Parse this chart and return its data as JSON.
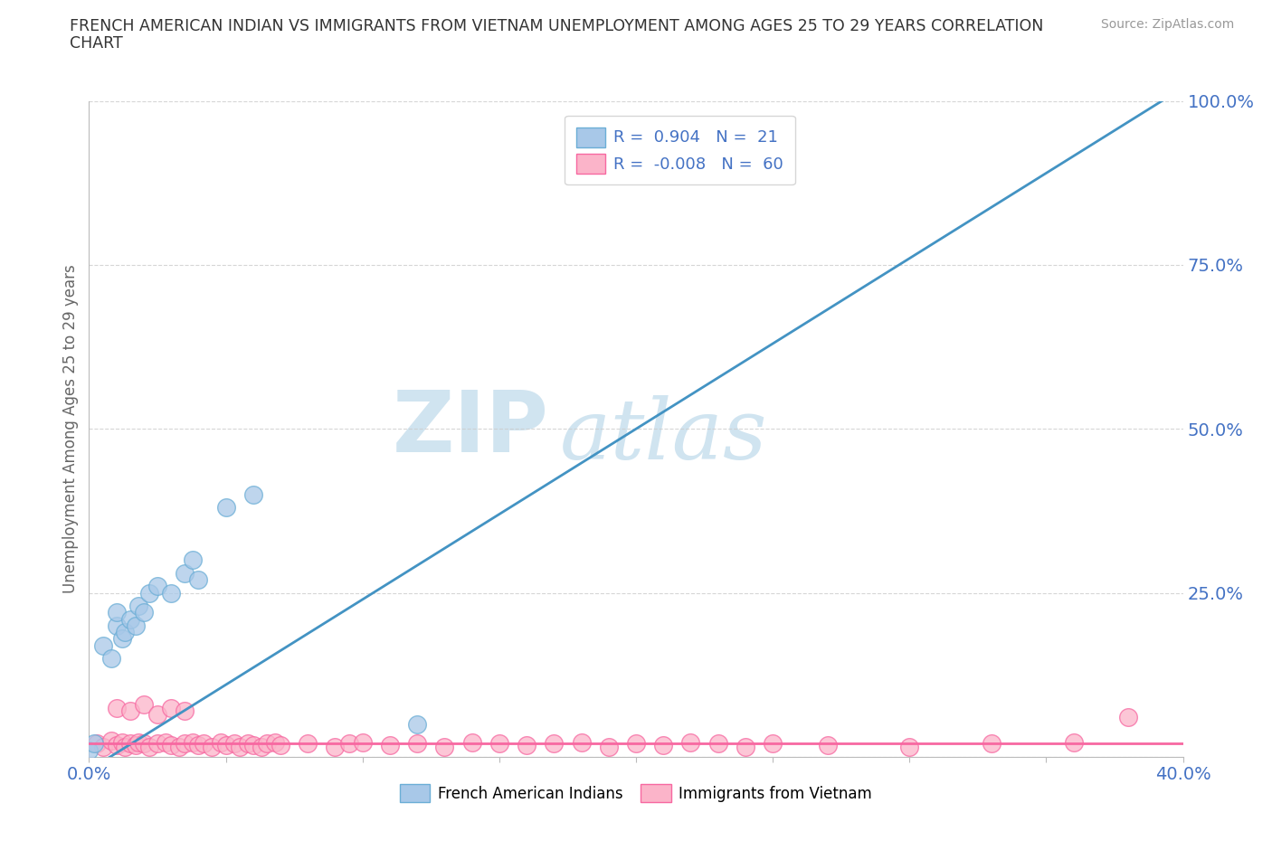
{
  "title_line1": "FRENCH AMERICAN INDIAN VS IMMIGRANTS FROM VIETNAM UNEMPLOYMENT AMONG AGES 25 TO 29 YEARS CORRELATION",
  "title_line2": "CHART",
  "source_text": "Source: ZipAtlas.com",
  "ylabel": "Unemployment Among Ages 25 to 29 years",
  "xlim": [
    0.0,
    0.4
  ],
  "ylim": [
    0.0,
    1.0
  ],
  "xticks": [
    0.0,
    0.05,
    0.1,
    0.15,
    0.2,
    0.25,
    0.3,
    0.35,
    0.4
  ],
  "xticklabels": [
    "0.0%",
    "",
    "",
    "",
    "",
    "",
    "",
    "",
    "40.0%"
  ],
  "yticks": [
    0.0,
    0.25,
    0.5,
    0.75,
    1.0
  ],
  "yticklabels": [
    "",
    "25.0%",
    "50.0%",
    "75.0%",
    "100.0%"
  ],
  "blue_color": "#a8c8e8",
  "blue_edge": "#6baed6",
  "pink_color": "#fbb4c9",
  "pink_edge": "#f768a1",
  "trend_blue": "#4393c3",
  "trend_pink": "#f768a1",
  "watermark_zip": "ZIP",
  "watermark_atlas": "atlas",
  "watermark_color": "#d0e4f0",
  "legend_blue_r": "0.904",
  "legend_blue_n": "21",
  "legend_pink_r": "-0.008",
  "legend_pink_n": "60",
  "tick_color": "#4472c4",
  "label_color": "#666666",
  "blue_scatter_x": [
    0.005,
    0.008,
    0.01,
    0.01,
    0.012,
    0.013,
    0.015,
    0.017,
    0.018,
    0.02,
    0.022,
    0.025,
    0.03,
    0.035,
    0.038,
    0.04,
    0.05,
    0.06,
    0.0,
    0.002,
    0.12
  ],
  "blue_scatter_y": [
    0.17,
    0.15,
    0.2,
    0.22,
    0.18,
    0.19,
    0.21,
    0.2,
    0.23,
    0.22,
    0.25,
    0.26,
    0.25,
    0.28,
    0.3,
    0.27,
    0.38,
    0.4,
    0.01,
    0.02,
    0.05
  ],
  "pink_scatter_x": [
    0.003,
    0.005,
    0.008,
    0.01,
    0.012,
    0.013,
    0.015,
    0.017,
    0.018,
    0.02,
    0.022,
    0.025,
    0.028,
    0.03,
    0.033,
    0.035,
    0.038,
    0.04,
    0.042,
    0.045,
    0.048,
    0.05,
    0.053,
    0.055,
    0.058,
    0.06,
    0.063,
    0.065,
    0.068,
    0.07,
    0.08,
    0.09,
    0.095,
    0.1,
    0.11,
    0.12,
    0.13,
    0.14,
    0.15,
    0.16,
    0.17,
    0.18,
    0.19,
    0.2,
    0.21,
    0.22,
    0.23,
    0.24,
    0.25,
    0.27,
    0.3,
    0.33,
    0.36,
    0.01,
    0.015,
    0.02,
    0.025,
    0.03,
    0.035,
    0.38
  ],
  "pink_scatter_y": [
    0.02,
    0.015,
    0.025,
    0.018,
    0.022,
    0.015,
    0.02,
    0.018,
    0.022,
    0.02,
    0.015,
    0.02,
    0.022,
    0.018,
    0.015,
    0.02,
    0.022,
    0.018,
    0.02,
    0.015,
    0.022,
    0.018,
    0.02,
    0.015,
    0.02,
    0.018,
    0.015,
    0.02,
    0.022,
    0.018,
    0.02,
    0.015,
    0.02,
    0.022,
    0.018,
    0.02,
    0.015,
    0.022,
    0.02,
    0.018,
    0.02,
    0.022,
    0.015,
    0.02,
    0.018,
    0.022,
    0.02,
    0.015,
    0.02,
    0.018,
    0.015,
    0.02,
    0.022,
    0.075,
    0.07,
    0.08,
    0.065,
    0.075,
    0.07,
    0.06
  ],
  "blue_trend_x0": 0.0,
  "blue_trend_y0": -0.02,
  "blue_trend_x1": 0.4,
  "blue_trend_y1": 1.02,
  "pink_trend_y": 0.02
}
